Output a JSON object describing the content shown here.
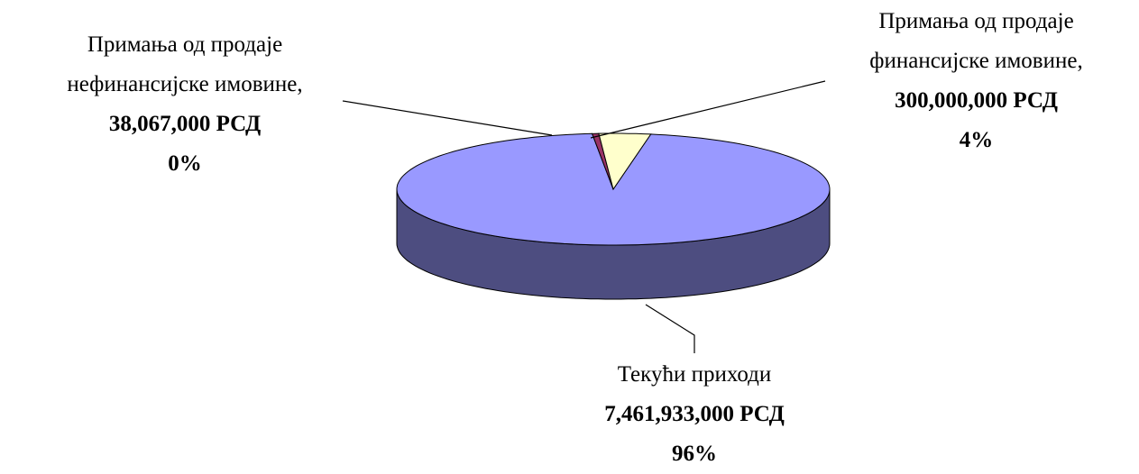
{
  "chart_data": {
    "type": "pie3d",
    "categories": [
      "Текући приходи",
      "Примања од продаје нефинансијске имовине,",
      "Примања од продаје финансијске имовине,"
    ],
    "values": [
      7461933000,
      38067000,
      300000000
    ],
    "value_labels": [
      "7,461,933,000 РСД",
      "38,067,000 РСД",
      "300,000,000 РСД"
    ],
    "percentage_labels": [
      "96%",
      "0%",
      "4%"
    ],
    "colors": [
      "#9999ff",
      "#993366",
      "#ffffcc"
    ]
  }
}
